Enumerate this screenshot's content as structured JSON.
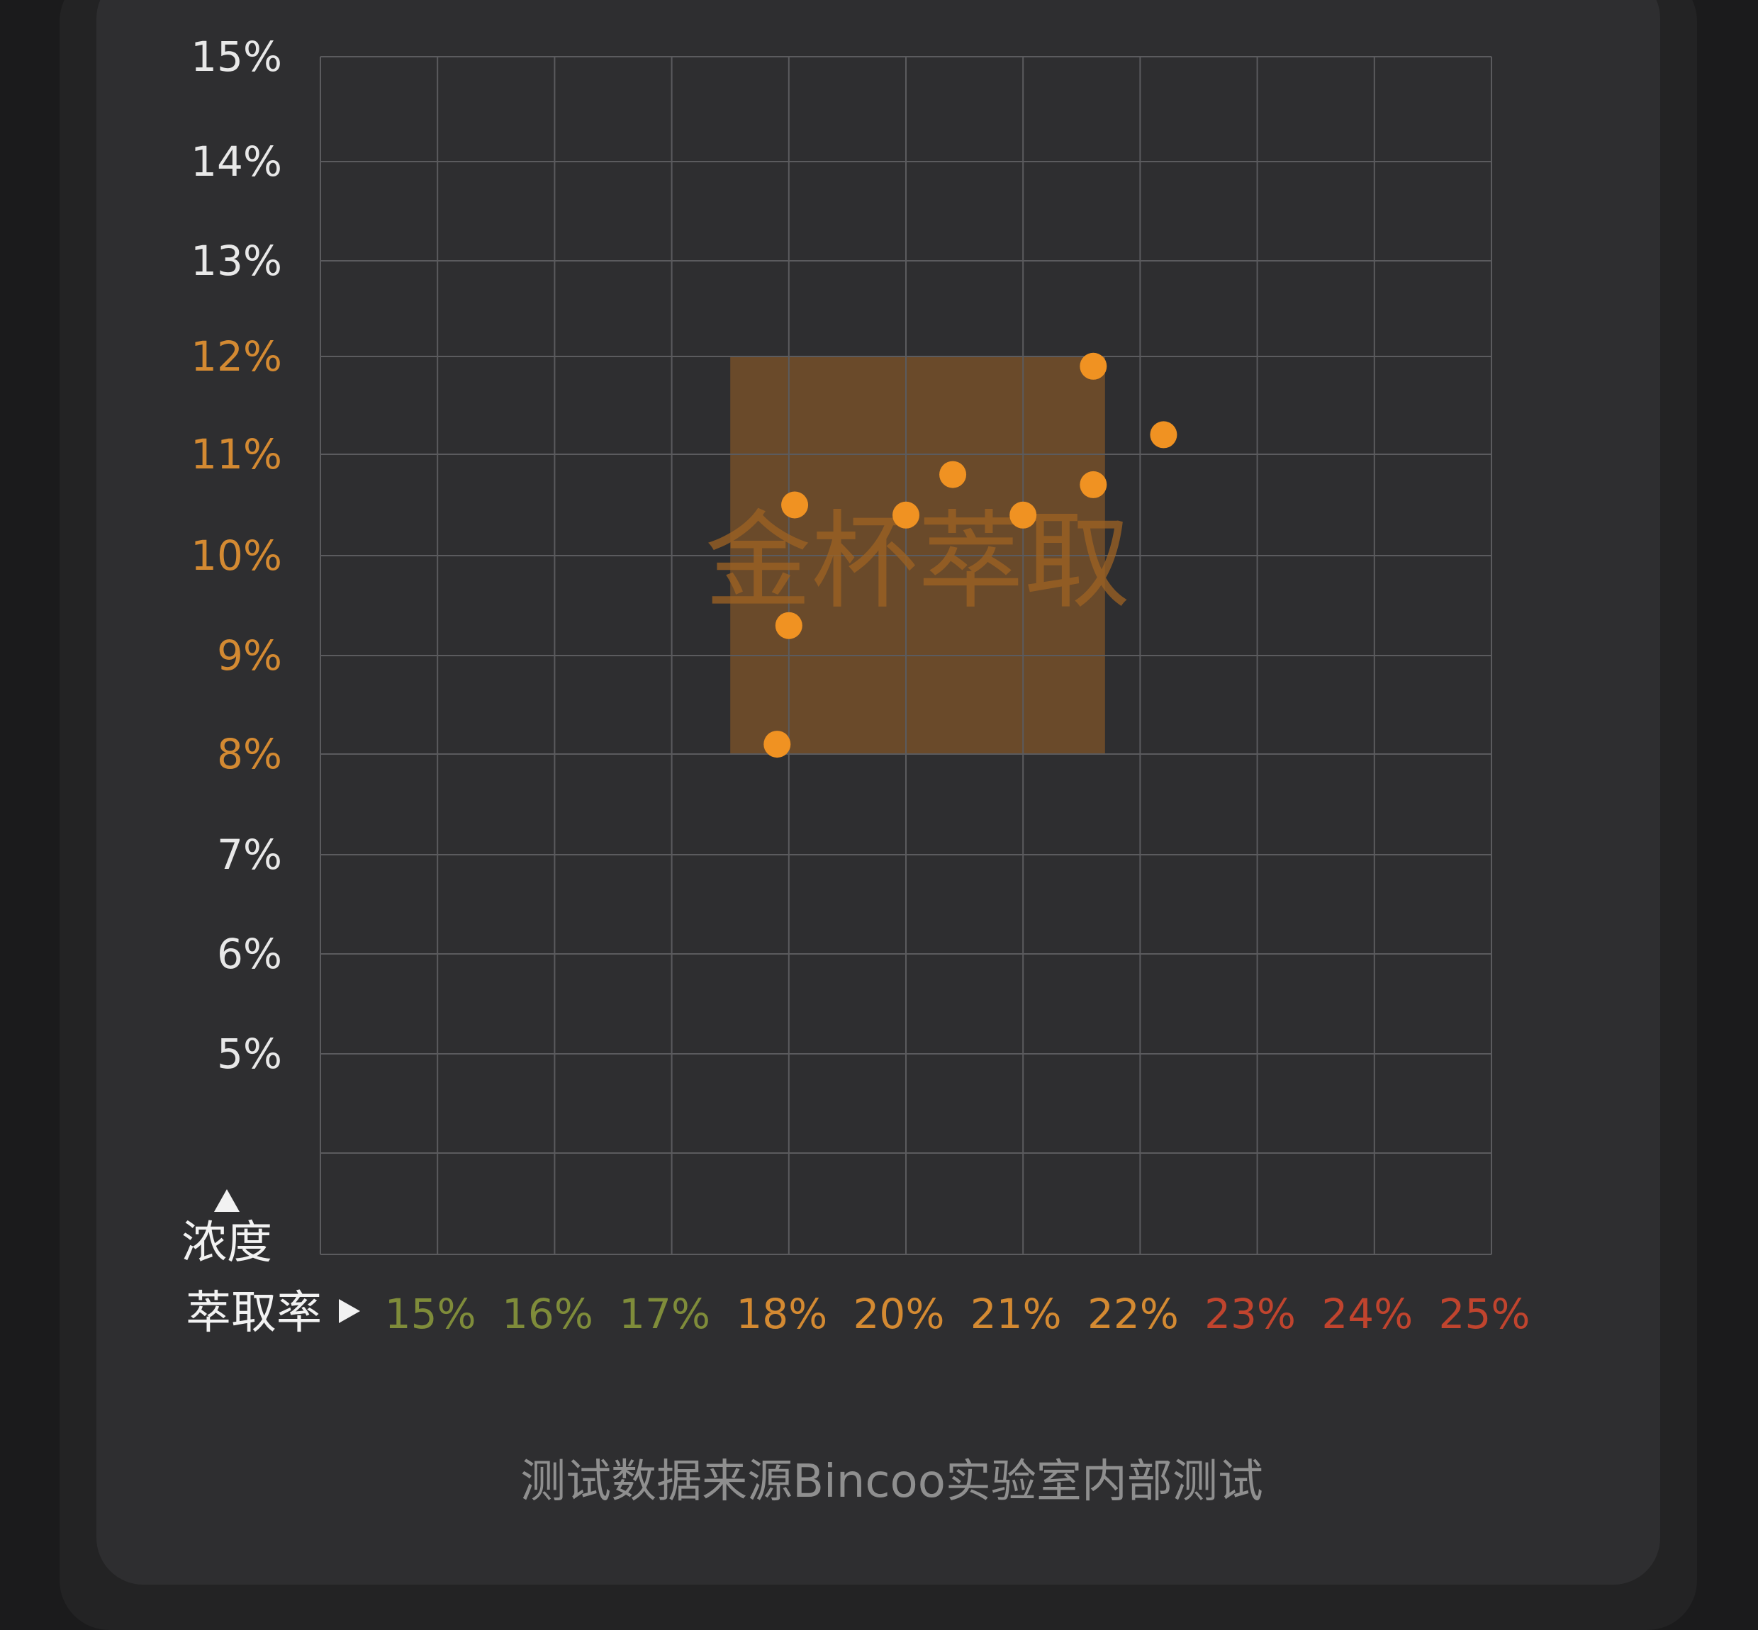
{
  "colors": {
    "background": "#1b1b1c",
    "panel": "#2e2e30",
    "grid": "#5b5b5e",
    "tick_white": "#e8e8e8",
    "tick_orange": "#d48a32",
    "tick_green": "#7f8c3a",
    "tick_red": "#c0442e",
    "golden_box": "#6a4a2a",
    "point": "#f09222"
  },
  "icons": {
    "y_arrow": "up-triangle-icon",
    "x_arrow": "right-triangle-icon"
  },
  "chart_data": {
    "type": "scatter",
    "title": "",
    "xlabel": "萃取率",
    "ylabel": "浓度",
    "grid": true,
    "x_tick_labels": [
      "15%",
      "16%",
      "17%",
      "18%",
      "20%",
      "21%",
      "22%",
      "23%",
      "24%",
      "25%"
    ],
    "x_tick_colors": [
      "green",
      "green",
      "green",
      "orange",
      "orange",
      "orange",
      "orange",
      "red",
      "red",
      "red"
    ],
    "y_tick_labels": [
      "15%",
      "14%",
      "13%",
      "12%",
      "11%",
      "10%",
      "9%",
      "8%",
      "7%",
      "6%",
      "5%"
    ],
    "y_tick_colors": [
      "white",
      "white",
      "white",
      "orange",
      "orange",
      "orange",
      "orange",
      "orange",
      "white",
      "white",
      "white"
    ],
    "golden_zone": {
      "label": "金杯萃取",
      "x_range": [
        "17.5%",
        "21.7%"
      ],
      "y_range": [
        "8%",
        "12%"
      ]
    },
    "points": [
      {
        "x": "17.9%",
        "y": "8.1%"
      },
      {
        "x": "18.0%",
        "y": "9.3%"
      },
      {
        "x": "18.1%",
        "y": "10.5%"
      },
      {
        "x": "20.0%",
        "y": "10.4%"
      },
      {
        "x": "20.4%",
        "y": "10.8%"
      },
      {
        "x": "21.0%",
        "y": "10.4%"
      },
      {
        "x": "21.6%",
        "y": "11.9%"
      },
      {
        "x": "21.6%",
        "y": "10.7%"
      },
      {
        "x": "22.2%",
        "y": "11.2%"
      }
    ]
  },
  "footnote": "测试数据来源Bincoo实验室内部测试"
}
